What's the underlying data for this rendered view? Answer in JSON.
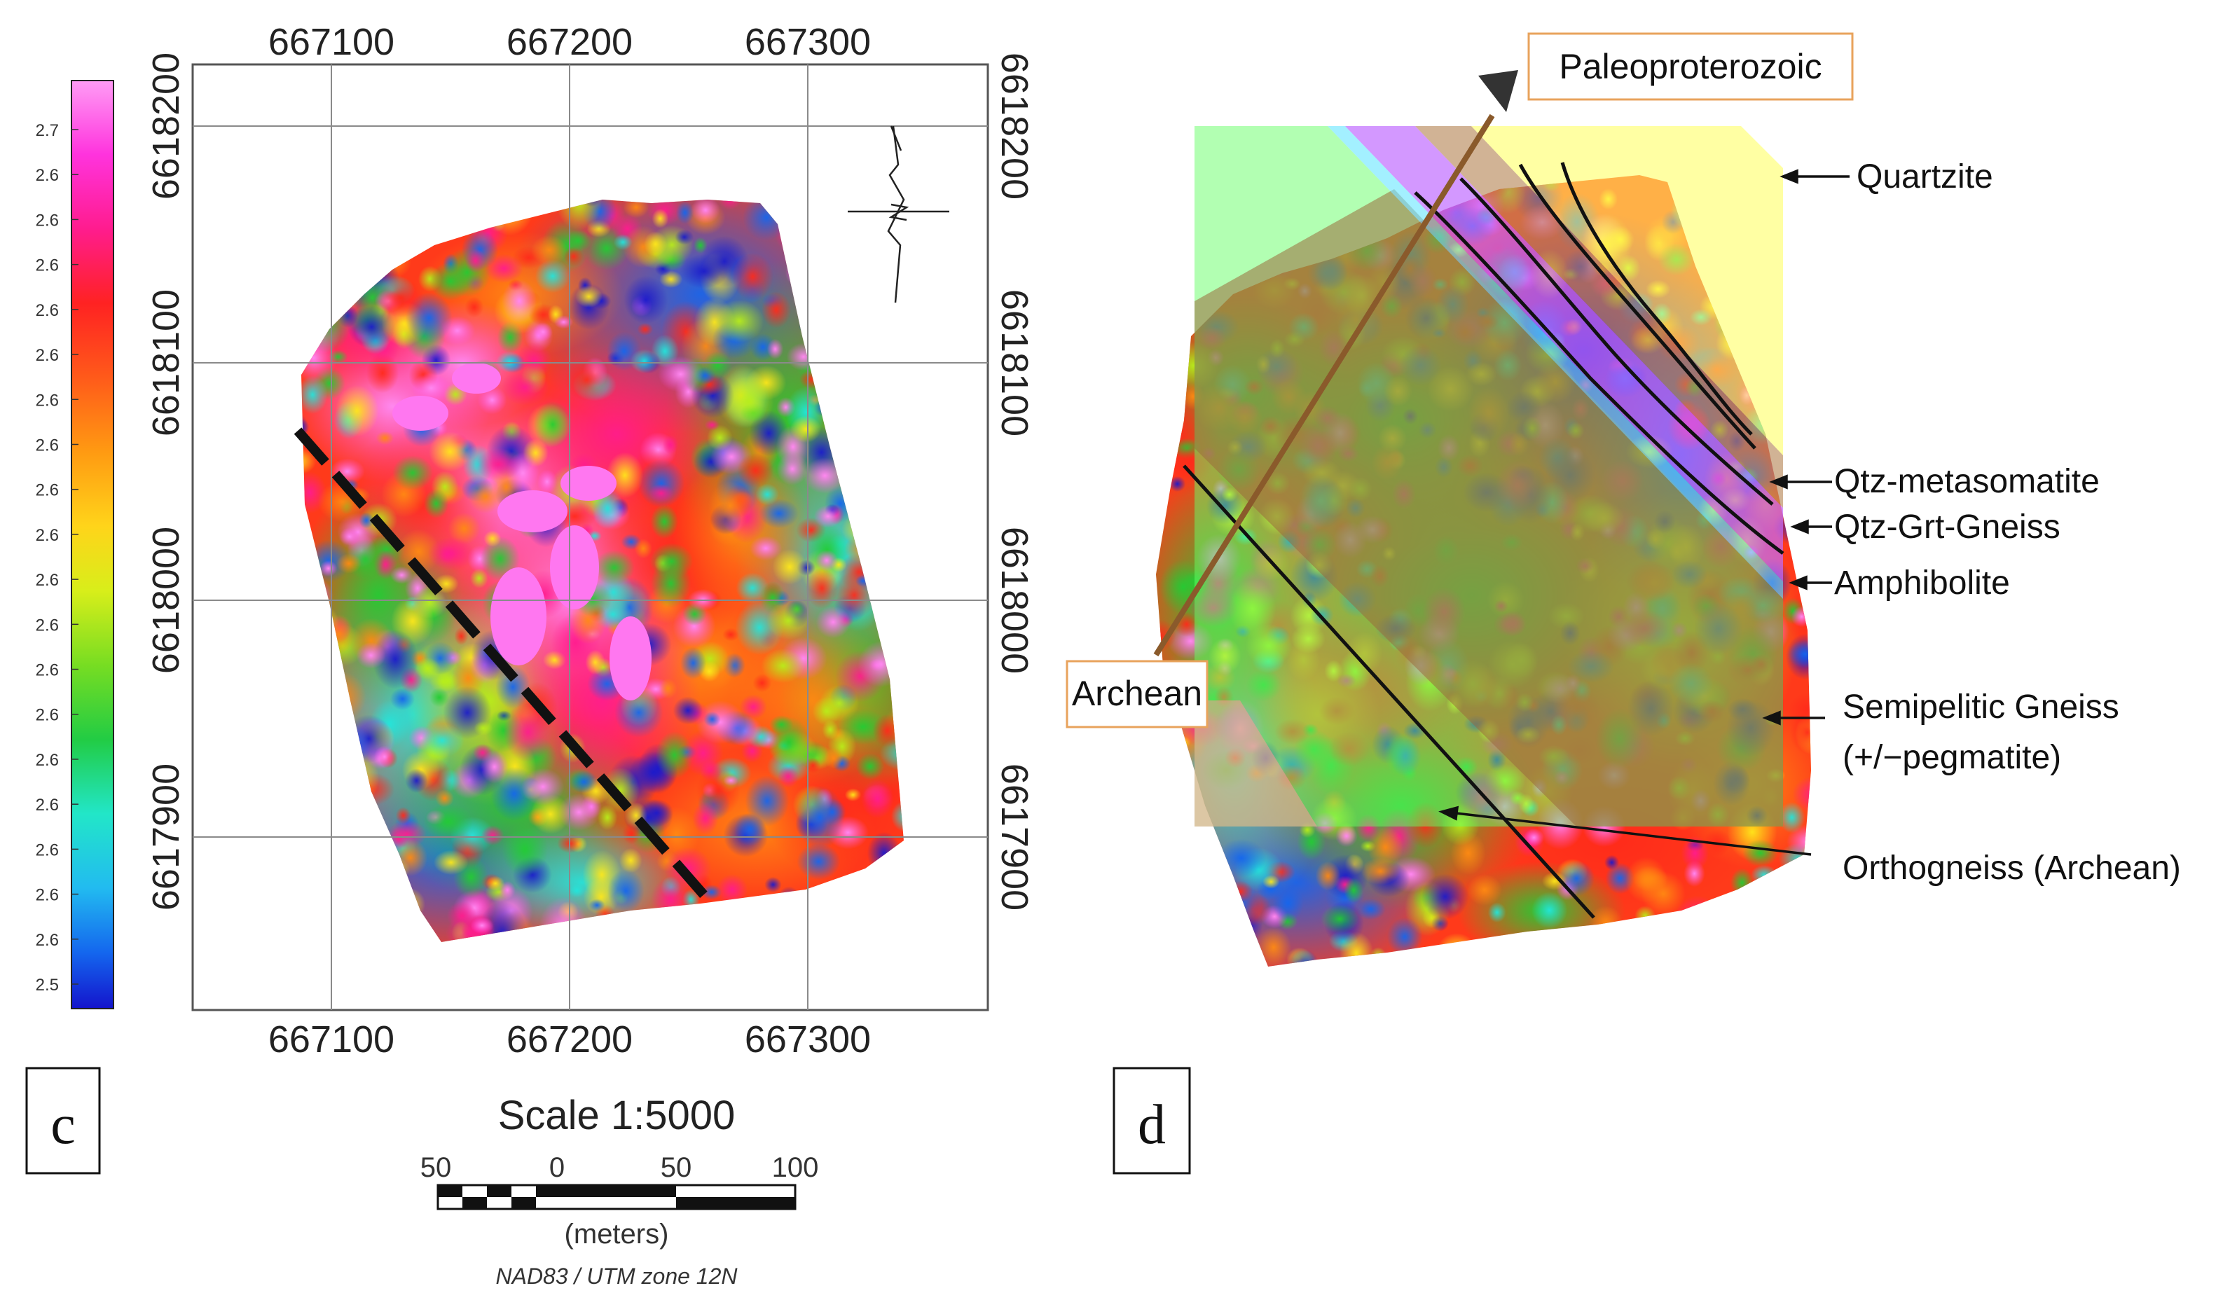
{
  "colors": {
    "magenta": "#ff55ee",
    "hot_pink": "#ff1c8e",
    "red": "#ff2a1a",
    "orange": "#ff8a12",
    "yellow": "#ffe81a",
    "lime": "#a6e81a",
    "green": "#22cc33",
    "cyan": "#22e6dc",
    "blue": "#1477ee",
    "deep_blue": "#1414cc",
    "archean_box_border": "#e8a35c",
    "arrow_brown": "#8a5a2b",
    "quartzite_overlay": "#ffff66",
    "metasomatite_overlay": "#c06cff",
    "gneiss_overlay": "#b88b5c",
    "amphibolite_overlay": "#66e6ff",
    "semipelitic_overlay": "#9b6b3d",
    "orthogneiss_overlay": "#ff9999",
    "archean_overlay": "#66ff66"
  },
  "colorbar": {
    "labels": [
      "2.7",
      "2.6",
      "2.6",
      "2.6",
      "2.6",
      "2.6",
      "2.6",
      "2.6",
      "2.6",
      "2.6",
      "2.6",
      "2.6",
      "2.6",
      "2.6",
      "2.6",
      "2.6",
      "2.6",
      "2.6",
      "2.6",
      "2.5"
    ]
  },
  "panel_c": {
    "letter": "c",
    "x_ticks": [
      "667100",
      "667200",
      "667300"
    ],
    "y_ticks": [
      "6618200",
      "6618100",
      "6618000",
      "6617900"
    ],
    "north_arrow_icon": "north-arrow-icon",
    "scale_title": "Scale 1:5000",
    "scale_ticks": [
      "50",
      "0",
      "50",
      "100"
    ],
    "scale_units": "(meters)",
    "projection": "NAD83 / UTM zone 12N"
  },
  "panel_d": {
    "letter": "d",
    "paleo_label": "Paleoproterozoic",
    "archean_label": "Archean",
    "units": {
      "quartzite": "Quartzite",
      "metasomatite": "Qtz-metasomatite",
      "gneiss": "Qtz-Grt-Gneiss",
      "amphibolite": "Amphibolite",
      "semipelitic_1": "Semipelitic Gneiss",
      "semipelitic_2": "(+/−pegmatite)",
      "orthogneiss": "Orthogneiss (Archean)"
    }
  }
}
